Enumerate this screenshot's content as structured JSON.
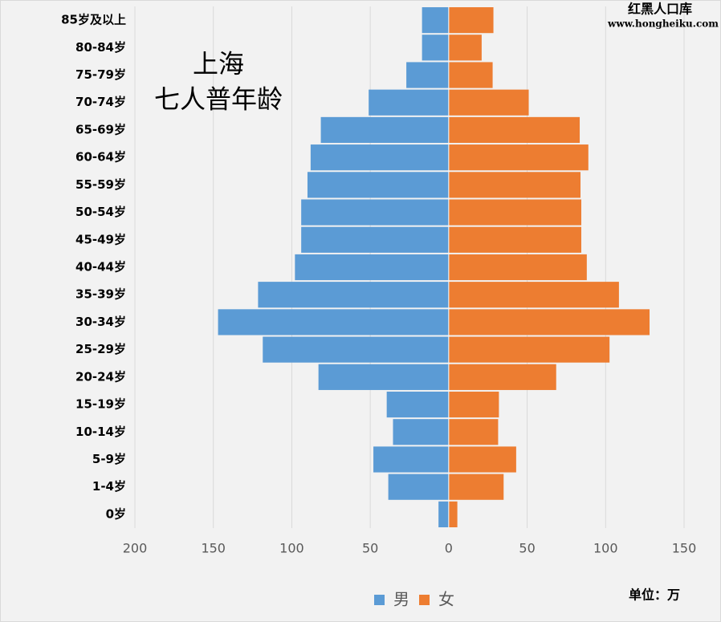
{
  "chart_data": {
    "type": "pyramid",
    "title": "上海",
    "subtitle": "七人普年龄",
    "source": "红黑人口库",
    "source_url": "www.hongheiku.com",
    "unit": "单位：万",
    "categories": [
      "85岁及以上",
      "80-84岁",
      "75-79岁",
      "70-74岁",
      "65-69岁",
      "60-64岁",
      "55-59岁",
      "50-54岁",
      "45-49岁",
      "40-44岁",
      "35-39岁",
      "30-34岁",
      "25-29岁",
      "20-24岁",
      "15-19岁",
      "10-14岁",
      "5-9岁",
      "1-4岁",
      "0岁"
    ],
    "series": [
      {
        "name": "男",
        "color": "#5b9bd5",
        "values": [
          -17,
          -17,
          -27,
          -51,
          -81.5,
          -88,
          -90,
          -94,
          -94,
          -98,
          -121.5,
          -147,
          -118.5,
          -83,
          -39.5,
          -35.5,
          -48,
          -38.5,
          -6.5
        ]
      },
      {
        "name": "女",
        "color": "#ed7d31",
        "values": [
          28.5,
          21,
          28,
          51,
          83.5,
          89,
          84,
          84.5,
          84.5,
          88,
          108.5,
          128,
          102.5,
          68.5,
          32,
          31.5,
          43,
          35,
          5.5
        ]
      }
    ],
    "xlim": [
      -200,
      150
    ],
    "xticks": [
      {
        "value": -200,
        "label": "200"
      },
      {
        "value": -150,
        "label": "150"
      },
      {
        "value": -100,
        "label": "100"
      },
      {
        "value": -50,
        "label": "50"
      },
      0,
      50,
      100,
      150
    ],
    "grid": true
  }
}
